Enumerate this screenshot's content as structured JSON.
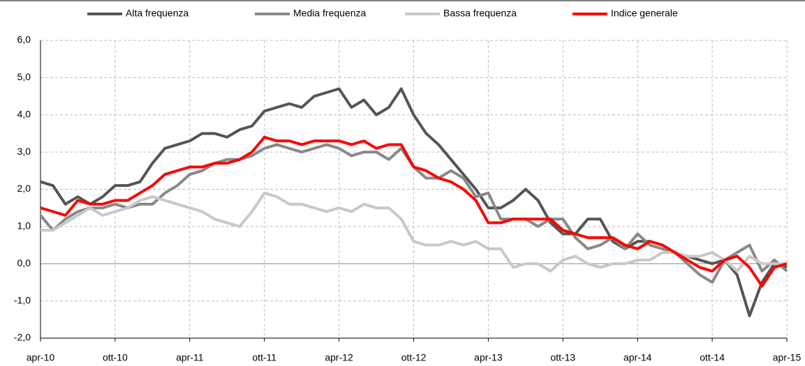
{
  "chart_data": {
    "type": "line",
    "categories": [
      "apr-10",
      null,
      null,
      null,
      null,
      null,
      "ott-10",
      null,
      null,
      null,
      null,
      null,
      "apr-11",
      null,
      null,
      null,
      null,
      null,
      "ott-11",
      null,
      null,
      null,
      null,
      null,
      "apr-12",
      null,
      null,
      null,
      null,
      null,
      "ott-12",
      null,
      null,
      null,
      null,
      null,
      "apr-13",
      null,
      null,
      null,
      null,
      null,
      "ott-13",
      null,
      null,
      null,
      null,
      null,
      "apr-14",
      null,
      null,
      null,
      null,
      null,
      "ott-14",
      null,
      null,
      null,
      null,
      null,
      "apr-15"
    ],
    "series": [
      {
        "name": "Alta frequenza",
        "color": "#555555",
        "values": [
          2.2,
          2.1,
          1.6,
          1.8,
          1.6,
          1.8,
          2.1,
          2.1,
          2.2,
          2.7,
          3.1,
          3.2,
          3.3,
          3.5,
          3.5,
          3.4,
          3.6,
          3.7,
          4.1,
          4.2,
          4.3,
          4.2,
          4.5,
          4.6,
          4.7,
          4.2,
          4.4,
          4.0,
          4.2,
          4.7,
          4.0,
          3.5,
          3.2,
          2.8,
          2.4,
          2.0,
          1.5,
          1.5,
          1.7,
          2.0,
          1.7,
          1.1,
          0.8,
          0.8,
          1.2,
          1.2,
          0.6,
          0.4,
          0.6,
          0.6,
          0.5,
          0.3,
          0.2,
          0.1,
          0.0,
          0.1,
          -0.3,
          -1.4,
          -0.5,
          0.0,
          -0.1
        ]
      },
      {
        "name": "Media frequenza",
        "color": "#888888",
        "values": [
          1.3,
          0.9,
          1.2,
          1.4,
          1.5,
          1.5,
          1.6,
          1.5,
          1.6,
          1.6,
          1.9,
          2.1,
          2.4,
          2.5,
          2.7,
          2.8,
          2.8,
          2.9,
          3.1,
          3.2,
          3.1,
          3.0,
          3.1,
          3.2,
          3.1,
          2.9,
          3.0,
          3.0,
          2.8,
          3.1,
          2.6,
          2.3,
          2.3,
          2.5,
          2.3,
          1.8,
          1.9,
          1.2,
          1.2,
          1.2,
          1.0,
          1.2,
          1.2,
          0.7,
          0.4,
          0.5,
          0.7,
          0.4,
          0.8,
          0.5,
          0.4,
          0.3,
          0.0,
          -0.3,
          -0.5,
          0.1,
          0.3,
          0.5,
          -0.2,
          0.1,
          -0.2
        ]
      },
      {
        "name": "Bassa frequenza",
        "color": "#c8c8c8",
        "values": [
          0.9,
          0.9,
          1.1,
          1.3,
          1.5,
          1.3,
          1.4,
          1.5,
          1.7,
          1.8,
          1.7,
          1.6,
          1.5,
          1.4,
          1.2,
          1.1,
          1.0,
          1.4,
          1.9,
          1.8,
          1.6,
          1.6,
          1.5,
          1.4,
          1.5,
          1.4,
          1.6,
          1.5,
          1.5,
          1.2,
          0.6,
          0.5,
          0.5,
          0.6,
          0.5,
          0.6,
          0.4,
          0.4,
          -0.1,
          0.0,
          0.0,
          -0.2,
          0.1,
          0.2,
          0.0,
          -0.1,
          0.0,
          0.0,
          0.1,
          0.1,
          0.3,
          0.3,
          0.2,
          0.2,
          0.3,
          0.1,
          -0.2,
          0.2,
          0.0,
          0.0,
          0.0
        ]
      },
      {
        "name": "Indice generale",
        "color": "#ff0000",
        "values": [
          1.5,
          1.4,
          1.3,
          1.7,
          1.6,
          1.6,
          1.7,
          1.7,
          1.9,
          2.1,
          2.4,
          2.5,
          2.6,
          2.6,
          2.7,
          2.7,
          2.8,
          3.0,
          3.4,
          3.3,
          3.3,
          3.2,
          3.3,
          3.3,
          3.3,
          3.2,
          3.3,
          3.1,
          3.2,
          3.2,
          2.6,
          2.5,
          2.3,
          2.2,
          2.0,
          1.7,
          1.1,
          1.1,
          1.2,
          1.2,
          1.2,
          1.2,
          0.9,
          0.8,
          0.7,
          0.7,
          0.7,
          0.5,
          0.4,
          0.6,
          0.5,
          0.3,
          0.1,
          -0.1,
          -0.2,
          0.1,
          0.2,
          -0.1,
          -0.6,
          -0.1,
          0.0
        ]
      }
    ],
    "ylim": [
      -2,
      6
    ],
    "yticks": [
      {
        "value": -2,
        "label": "-2,0"
      },
      {
        "value": -1,
        "label": "-1,0"
      },
      {
        "value": 0,
        "label": "0,0"
      },
      {
        "value": 1,
        "label": "1,0"
      },
      {
        "value": 2,
        "label": "2,0"
      },
      {
        "value": 3,
        "label": "3,0"
      },
      {
        "value": 4,
        "label": "4,0"
      },
      {
        "value": 5,
        "label": "5,0"
      },
      {
        "value": 6,
        "label": "6,0"
      }
    ],
    "grid": true
  }
}
